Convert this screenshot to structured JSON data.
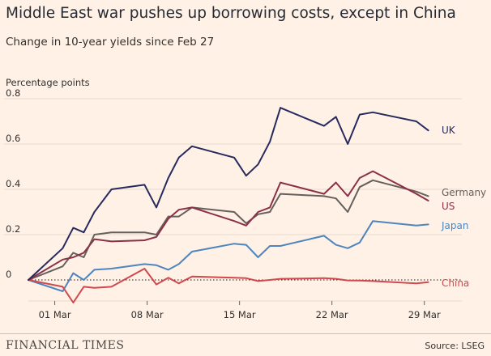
{
  "chart_data": {
    "type": "line",
    "title": "Middle East war pushes up borrowing costs, except in China",
    "subtitle": "Change in 10-year yields since Feb 27",
    "ylabel": "Percentage points",
    "xlabel": "",
    "ylim": [
      -0.1,
      0.8
    ],
    "xlim": [
      0,
      31
    ],
    "yticks": [
      0,
      0.2,
      0.4,
      0.6,
      0.8
    ],
    "ytick_labels": [
      "0",
      "0.2",
      "0.4",
      "0.6",
      "0.8"
    ],
    "xticks": [
      {
        "label": "01 Mar",
        "x": 2
      },
      {
        "label": "08 Mar",
        "x": 9
      },
      {
        "label": "15 Mar",
        "x": 16
      },
      {
        "label": "22 Mar",
        "x": 23
      },
      {
        "label": "29 Mar",
        "x": 30
      }
    ],
    "grid": true,
    "zero_line": "dotted",
    "series": [
      {
        "name": "UK",
        "color": "#262a5e",
        "points": [
          [
            0,
            0
          ],
          [
            2.6,
            0.14
          ],
          [
            3.4,
            0.23
          ],
          [
            4.2,
            0.21
          ],
          [
            5,
            0.3
          ],
          [
            6.3,
            0.4
          ],
          [
            8.8,
            0.42
          ],
          [
            9.7,
            0.32
          ],
          [
            10.6,
            0.45
          ],
          [
            11.4,
            0.54
          ],
          [
            12.4,
            0.59
          ],
          [
            15.6,
            0.54
          ],
          [
            16.5,
            0.46
          ],
          [
            17.4,
            0.51
          ],
          [
            18.3,
            0.61
          ],
          [
            19.1,
            0.76
          ],
          [
            22.4,
            0.68
          ],
          [
            23.3,
            0.72
          ],
          [
            24.2,
            0.6
          ],
          [
            25.1,
            0.73
          ],
          [
            26.1,
            0.74
          ],
          [
            29.4,
            0.7
          ],
          [
            30.3,
            0.66
          ]
        ]
      },
      {
        "name": "Germany",
        "color": "#66605c",
        "points": [
          [
            0,
            0
          ],
          [
            2.6,
            0.06
          ],
          [
            3.4,
            0.12
          ],
          [
            4.2,
            0.1
          ],
          [
            5,
            0.2
          ],
          [
            6.3,
            0.21
          ],
          [
            8.8,
            0.21
          ],
          [
            9.7,
            0.2
          ],
          [
            10.6,
            0.28
          ],
          [
            11.4,
            0.28
          ],
          [
            12.4,
            0.32
          ],
          [
            15.6,
            0.3
          ],
          [
            16.5,
            0.25
          ],
          [
            17.4,
            0.29
          ],
          [
            18.3,
            0.3
          ],
          [
            19.1,
            0.38
          ],
          [
            22.4,
            0.37
          ],
          [
            23.3,
            0.36
          ],
          [
            24.2,
            0.3
          ],
          [
            25.1,
            0.41
          ],
          [
            26.1,
            0.44
          ],
          [
            29.4,
            0.39
          ],
          [
            30.3,
            0.37
          ]
        ]
      },
      {
        "name": "US",
        "color": "#8a3047",
        "points": [
          [
            0,
            0
          ],
          [
            2.6,
            0.09
          ],
          [
            3.4,
            0.1
          ],
          [
            4.2,
            0.12
          ],
          [
            5,
            0.18
          ],
          [
            6.3,
            0.17
          ],
          [
            8.8,
            0.175
          ],
          [
            9.7,
            0.19
          ],
          [
            10.6,
            0.27
          ],
          [
            11.4,
            0.31
          ],
          [
            12.4,
            0.32
          ],
          [
            15.6,
            0.26
          ],
          [
            16.5,
            0.24
          ],
          [
            17.4,
            0.3
          ],
          [
            18.3,
            0.32
          ],
          [
            19.1,
            0.43
          ],
          [
            22.4,
            0.38
          ],
          [
            23.3,
            0.43
          ],
          [
            24.2,
            0.37
          ],
          [
            25.1,
            0.45
          ],
          [
            26.1,
            0.48
          ],
          [
            29.4,
            0.38
          ],
          [
            30.3,
            0.35
          ]
        ]
      },
      {
        "name": "Japan",
        "color": "#4e85be",
        "points": [
          [
            0,
            0
          ],
          [
            2.6,
            -0.05
          ],
          [
            3.4,
            0.03
          ],
          [
            4.2,
            0.0
          ],
          [
            5,
            0.045
          ],
          [
            6.3,
            0.05
          ],
          [
            8.8,
            0.07
          ],
          [
            9.7,
            0.065
          ],
          [
            10.6,
            0.045
          ],
          [
            11.4,
            0.07
          ],
          [
            12.4,
            0.125
          ],
          [
            15.6,
            0.16
          ],
          [
            16.5,
            0.155
          ],
          [
            17.4,
            0.1
          ],
          [
            18.3,
            0.15
          ],
          [
            19.1,
            0.15
          ],
          [
            22.4,
            0.195
          ],
          [
            23.3,
            0.155
          ],
          [
            24.2,
            0.14
          ],
          [
            25.1,
            0.165
          ],
          [
            26.1,
            0.26
          ],
          [
            29.4,
            0.24
          ],
          [
            30.3,
            0.245
          ]
        ]
      },
      {
        "name": "China",
        "color": "#d1484f",
        "points": [
          [
            0,
            0
          ],
          [
            2.6,
            -0.03
          ],
          [
            3.4,
            -0.1
          ],
          [
            4.2,
            -0.03
          ],
          [
            5,
            -0.035
          ],
          [
            6.3,
            -0.03
          ],
          [
            8.8,
            0.05
          ],
          [
            9.7,
            -0.02
          ],
          [
            10.6,
            0.01
          ],
          [
            11.4,
            -0.015
          ],
          [
            12.4,
            0.015
          ],
          [
            15.6,
            0.01
          ],
          [
            16.5,
            0.008
          ],
          [
            17.4,
            -0.005
          ],
          [
            18.3,
            0.0
          ],
          [
            19.1,
            0.005
          ],
          [
            22.4,
            0.008
          ],
          [
            23.3,
            0.005
          ],
          [
            24.2,
            -0.002
          ],
          [
            25.1,
            -0.003
          ],
          [
            26.1,
            -0.005
          ],
          [
            29.4,
            -0.015
          ],
          [
            30.3,
            -0.01
          ]
        ]
      }
    ]
  },
  "source": "Source: LSEG",
  "brand": "FINANCIAL TIMES"
}
